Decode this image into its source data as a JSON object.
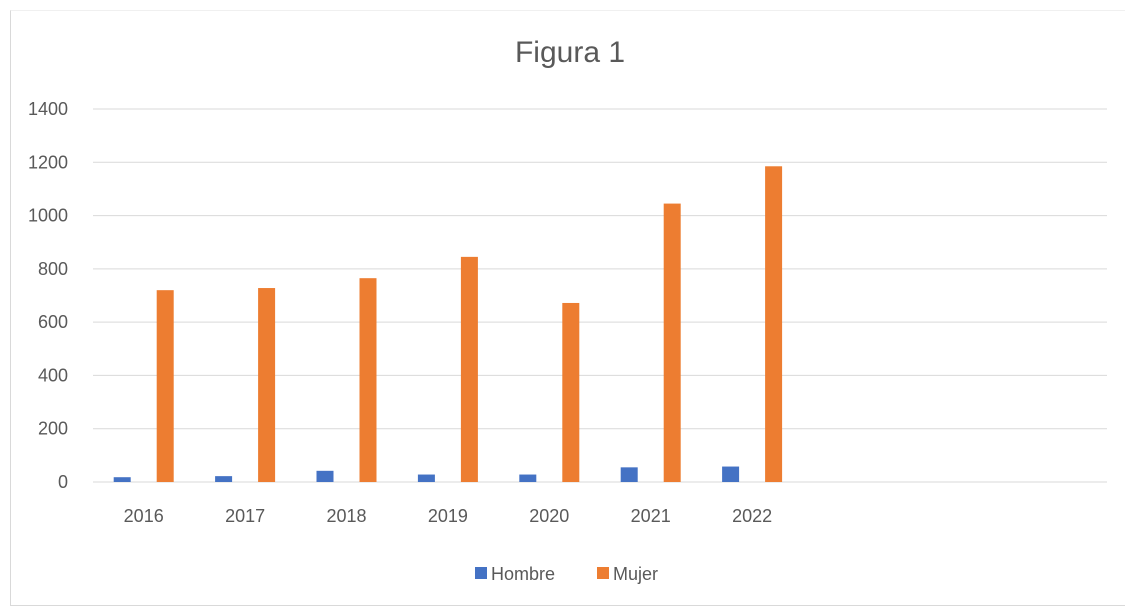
{
  "chart_data": {
    "type": "bar",
    "title": "Figura 1",
    "xlabel": "",
    "ylabel": "",
    "categories": [
      "2016",
      "2017",
      "2018",
      "2019",
      "2020",
      "2021",
      "2022",
      "",
      "",
      ""
    ],
    "series": [
      {
        "name": "Hombre",
        "color": "#4472C4",
        "values": [
          18,
          22,
          42,
          28,
          28,
          55,
          58,
          null,
          null,
          null
        ]
      },
      {
        "name": "Mujer",
        "color": "#ED7D31",
        "values": [
          720,
          728,
          765,
          845,
          672,
          1045,
          1185,
          null,
          null,
          null
        ]
      }
    ],
    "ylim": [
      0,
      1400
    ],
    "yticks": [
      "0",
      "200",
      "400",
      "600",
      "800",
      "1000",
      "1200",
      "1400"
    ],
    "grid": true,
    "legend_position": "bottom",
    "gridline_color": "#d9d9d9",
    "axis_text_color": "#595959"
  }
}
